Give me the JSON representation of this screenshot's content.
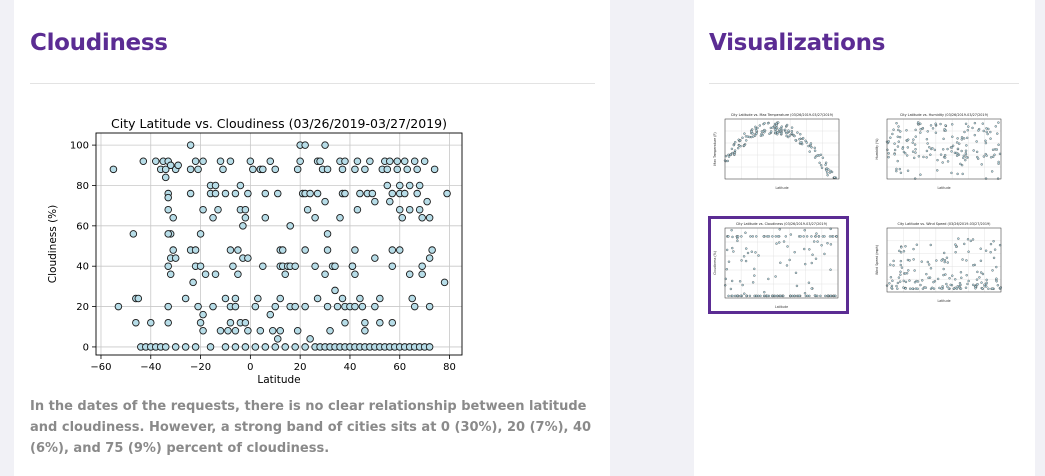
{
  "main": {
    "title": "Cloudiness",
    "summary": "In the dates of the requests, there is no clear relationship between latitude and cloudiness. However, a strong band of cities sits at 0 (30%), 20 (7%), 40 (6%), and 75 (9%) percent of cloudiness."
  },
  "sidebar": {
    "title": "Visualizations",
    "thumbnails": [
      {
        "label": "City Latitude vs. Max Temperature (03/26/2019-03/27/2019)",
        "ylabel": "Max Temperature (F)",
        "xlabel": "Latitude",
        "active": false
      },
      {
        "label": "City Latitude vs. Humidity (03/26/2019-03/27/2019)",
        "ylabel": "Humidity (%)",
        "xlabel": "Latitude",
        "active": false
      },
      {
        "label": "City Latitude vs. Cloudiness (03/26/2019-03/27/2019)",
        "ylabel": "Cloudiness (%)",
        "xlabel": "Latitude",
        "active": true
      },
      {
        "label": "City Latitude vs. Wind Speed (03/26/2019-03/27/2019)",
        "ylabel": "Wind Speed (mph)",
        "xlabel": "Latitude",
        "active": false
      }
    ]
  },
  "chart_data": {
    "type": "scatter",
    "title": "City Latitude vs. Cloudiness (03/26/2019-03/27/2019)",
    "xlabel": "Latitude",
    "ylabel": "Cloudiness (%)",
    "xlim": [
      -62,
      85
    ],
    "ylim": [
      -4,
      106
    ],
    "xticks": [
      -60,
      -40,
      -20,
      0,
      20,
      40,
      60,
      80
    ],
    "xtick_labels": [
      "−60",
      "−40",
      "−20",
      "0",
      "20",
      "40",
      "60",
      "80"
    ],
    "yticks": [
      0,
      20,
      40,
      60,
      80,
      100
    ],
    "yticks_labels": [
      "0",
      "20",
      "40",
      "60",
      "80",
      "100"
    ],
    "grid": true,
    "marker_fill": "#b7dde8",
    "marker_edge": "#1a1a1a",
    "points": [
      [
        -55,
        88
      ],
      [
        -53,
        20
      ],
      [
        -47,
        56
      ],
      [
        -46,
        24
      ],
      [
        -45,
        24
      ],
      [
        -46,
        12
      ],
      [
        -43,
        92
      ],
      [
        -40,
        12
      ],
      [
        -38,
        92
      ],
      [
        -36,
        88
      ],
      [
        -35,
        92
      ],
      [
        -34,
        84
      ],
      [
        -34,
        88
      ],
      [
        -33,
        92
      ],
      [
        -30,
        88
      ],
      [
        -29,
        90
      ],
      [
        -32,
        90
      ],
      [
        -33,
        76
      ],
      [
        -33,
        74
      ],
      [
        -33,
        68
      ],
      [
        -32,
        56
      ],
      [
        -31,
        64
      ],
      [
        -33,
        56
      ],
      [
        -31,
        48
      ],
      [
        -33,
        40
      ],
      [
        -33,
        20
      ],
      [
        -33,
        12
      ],
      [
        -32,
        36
      ],
      [
        -32,
        44
      ],
      [
        -30,
        44
      ],
      [
        -26,
        24
      ],
      [
        -24,
        100
      ],
      [
        -24,
        88
      ],
      [
        -22,
        92
      ],
      [
        -24,
        76
      ],
      [
        -21,
        88
      ],
      [
        -19,
        92
      ],
      [
        -24,
        48
      ],
      [
        -22,
        48
      ],
      [
        -22,
        40
      ],
      [
        -23,
        32
      ],
      [
        -21,
        20
      ],
      [
        -20,
        12
      ],
      [
        -19,
        16
      ],
      [
        -19,
        8
      ],
      [
        -20,
        56
      ],
      [
        -19,
        68
      ],
      [
        -20,
        40
      ],
      [
        -18,
        36
      ],
      [
        -16,
        80
      ],
      [
        -16,
        76
      ],
      [
        -14,
        76
      ],
      [
        -14,
        80
      ],
      [
        -12,
        92
      ],
      [
        -11,
        88
      ],
      [
        -10,
        76
      ],
      [
        -13,
        68
      ],
      [
        -15,
        64
      ],
      [
        -14,
        36
      ],
      [
        -15,
        20
      ],
      [
        -12,
        8
      ],
      [
        -9,
        8
      ],
      [
        -10,
        24
      ],
      [
        -8,
        20
      ],
      [
        -8,
        12
      ],
      [
        -6,
        8
      ],
      [
        -6,
        20
      ],
      [
        -7,
        40
      ],
      [
        -5,
        36
      ],
      [
        -3,
        44
      ],
      [
        -1,
        44
      ],
      [
        -3,
        60
      ],
      [
        -2,
        64
      ],
      [
        -4,
        68
      ],
      [
        -1,
        76
      ],
      [
        0,
        92
      ],
      [
        1,
        88
      ],
      [
        -8,
        92
      ],
      [
        -6,
        76
      ],
      [
        -4,
        80
      ],
      [
        -2,
        68
      ],
      [
        -8,
        48
      ],
      [
        -5,
        48
      ],
      [
        -6,
        24
      ],
      [
        -4,
        12
      ],
      [
        -2,
        12
      ],
      [
        -1,
        8
      ],
      [
        2,
        20
      ],
      [
        3,
        24
      ],
      [
        4,
        8
      ],
      [
        5,
        40
      ],
      [
        6,
        64
      ],
      [
        4,
        88
      ],
      [
        5,
        88
      ],
      [
        6,
        76
      ],
      [
        8,
        92
      ],
      [
        10,
        88
      ],
      [
        11,
        76
      ],
      [
        12,
        40
      ],
      [
        12,
        48
      ],
      [
        13,
        48
      ],
      [
        13,
        40
      ],
      [
        12,
        24
      ],
      [
        10,
        20
      ],
      [
        8,
        16
      ],
      [
        9,
        8
      ],
      [
        11,
        4
      ],
      [
        12,
        8
      ],
      [
        14,
        36
      ],
      [
        15,
        40
      ],
      [
        16,
        40
      ],
      [
        16,
        60
      ],
      [
        16,
        20
      ],
      [
        18,
        20
      ],
      [
        19,
        8
      ],
      [
        18,
        40
      ],
      [
        19,
        88
      ],
      [
        20,
        92
      ],
      [
        20,
        100
      ],
      [
        22,
        100
      ],
      [
        21,
        76
      ],
      [
        22,
        76
      ],
      [
        24,
        76
      ],
      [
        23,
        68
      ],
      [
        22,
        48
      ],
      [
        22,
        20
      ],
      [
        24,
        4
      ],
      [
        26,
        40
      ],
      [
        27,
        24
      ],
      [
        26,
        64
      ],
      [
        27,
        76
      ],
      [
        27,
        92
      ],
      [
        28,
        92
      ],
      [
        29,
        88
      ],
      [
        30,
        100
      ],
      [
        31,
        88
      ],
      [
        30,
        72
      ],
      [
        31,
        56
      ],
      [
        31,
        48
      ],
      [
        30,
        36
      ],
      [
        31,
        20
      ],
      [
        32,
        8
      ],
      [
        33,
        40
      ],
      [
        34,
        40
      ],
      [
        34,
        28
      ],
      [
        35,
        20
      ],
      [
        36,
        64
      ],
      [
        36,
        92
      ],
      [
        37,
        76
      ],
      [
        37,
        88
      ],
      [
        38,
        92
      ],
      [
        38,
        76
      ],
      [
        37,
        24
      ],
      [
        38,
        12
      ],
      [
        38,
        20
      ],
      [
        40,
        20
      ],
      [
        41,
        40
      ],
      [
        41,
        40
      ],
      [
        42,
        36
      ],
      [
        42,
        20
      ],
      [
        42,
        48
      ],
      [
        42,
        88
      ],
      [
        43,
        92
      ],
      [
        44,
        76
      ],
      [
        43,
        68
      ],
      [
        44,
        24
      ],
      [
        45,
        20
      ],
      [
        46,
        12
      ],
      [
        46,
        8
      ],
      [
        46,
        88
      ],
      [
        47,
        76
      ],
      [
        48,
        92
      ],
      [
        49,
        76
      ],
      [
        50,
        72
      ],
      [
        50,
        44
      ],
      [
        50,
        20
      ],
      [
        52,
        24
      ],
      [
        52,
        12
      ],
      [
        53,
        88
      ],
      [
        54,
        92
      ],
      [
        55,
        88
      ],
      [
        55,
        80
      ],
      [
        56,
        92
      ],
      [
        57,
        76
      ],
      [
        56,
        72
      ],
      [
        57,
        48
      ],
      [
        57,
        40
      ],
      [
        57,
        12
      ],
      [
        59,
        92
      ],
      [
        59,
        88
      ],
      [
        60,
        76
      ],
      [
        60,
        80
      ],
      [
        60,
        68
      ],
      [
        61,
        64
      ],
      [
        60,
        48
      ],
      [
        62,
        92
      ],
      [
        62,
        76
      ],
      [
        63,
        88
      ],
      [
        64,
        80
      ],
      [
        64,
        68
      ],
      [
        64,
        36
      ],
      [
        65,
        24
      ],
      [
        66,
        20
      ],
      [
        66,
        92
      ],
      [
        67,
        88
      ],
      [
        67,
        76
      ],
      [
        68,
        80
      ],
      [
        68,
        68
      ],
      [
        69,
        64
      ],
      [
        69,
        40
      ],
      [
        69,
        36
      ],
      [
        70,
        92
      ],
      [
        71,
        72
      ],
      [
        72,
        64
      ],
      [
        72,
        44
      ],
      [
        72,
        20
      ],
      [
        73,
        48
      ],
      [
        74,
        88
      ],
      [
        78,
        32
      ],
      [
        79,
        76
      ],
      [
        -44,
        0
      ],
      [
        -42,
        0
      ],
      [
        -40,
        0
      ],
      [
        -38,
        0
      ],
      [
        -36,
        0
      ],
      [
        -34,
        0
      ],
      [
        -30,
        0
      ],
      [
        -26,
        0
      ],
      [
        -22,
        0
      ],
      [
        -16,
        0
      ],
      [
        -10,
        0
      ],
      [
        -6,
        0
      ],
      [
        -2,
        0
      ],
      [
        2,
        0
      ],
      [
        6,
        0
      ],
      [
        10,
        0
      ],
      [
        14,
        0
      ],
      [
        18,
        0
      ],
      [
        22,
        0
      ],
      [
        26,
        0
      ],
      [
        28,
        0
      ],
      [
        30,
        0
      ],
      [
        32,
        0
      ],
      [
        34,
        0
      ],
      [
        36,
        0
      ],
      [
        38,
        0
      ],
      [
        40,
        0
      ],
      [
        42,
        0
      ],
      [
        44,
        0
      ],
      [
        46,
        0
      ],
      [
        48,
        0
      ],
      [
        50,
        0
      ],
      [
        52,
        0
      ],
      [
        54,
        0
      ],
      [
        56,
        0
      ],
      [
        58,
        0
      ],
      [
        60,
        0
      ],
      [
        62,
        0
      ],
      [
        64,
        0
      ],
      [
        66,
        0
      ],
      [
        68,
        0
      ],
      [
        70,
        0
      ],
      [
        72,
        0
      ]
    ]
  }
}
